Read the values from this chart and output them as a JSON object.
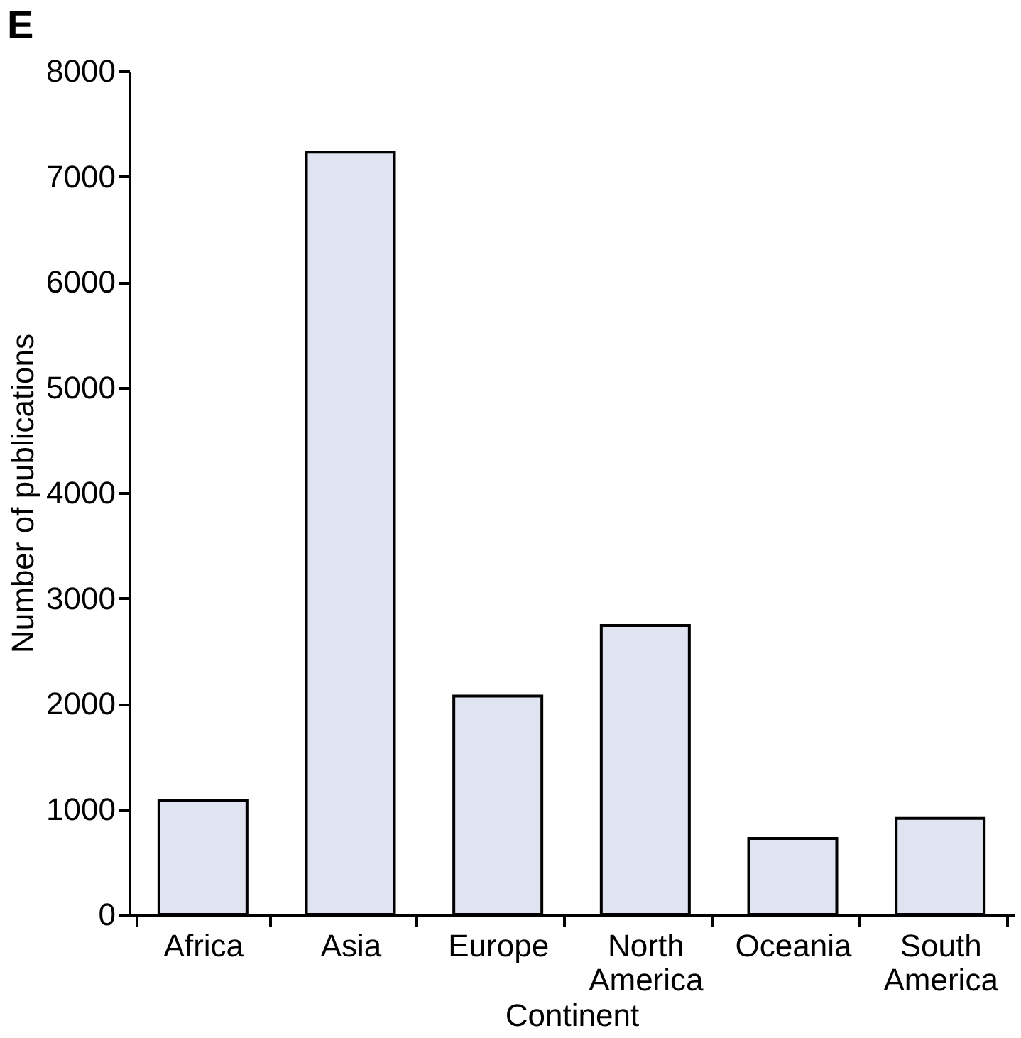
{
  "chart_data": {
    "type": "bar",
    "title": "E",
    "xlabel": "Continent",
    "ylabel": "Number of publications",
    "categories": [
      "Africa",
      "Asia",
      "Europe",
      "North America",
      "Oceania",
      "South America"
    ],
    "values": [
      1080,
      7230,
      2070,
      2740,
      720,
      910
    ],
    "color": "#e0e3f0",
    "ylim": [
      0,
      8000
    ],
    "yticks": [
      0,
      1000,
      2000,
      3000,
      4000,
      5000,
      6000,
      7000,
      8000
    ],
    "grid": false
  }
}
